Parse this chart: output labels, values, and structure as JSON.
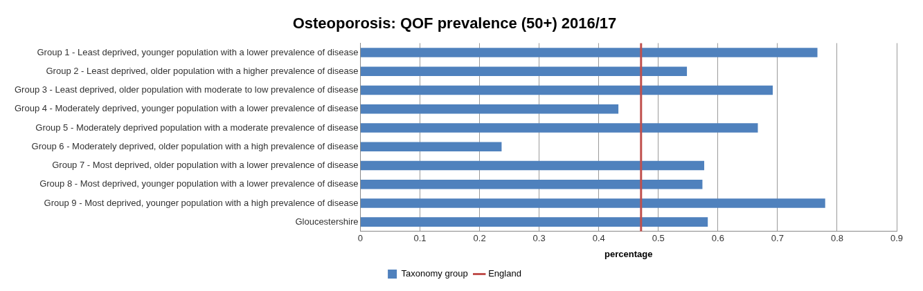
{
  "chart_data": {
    "type": "bar",
    "orientation": "horizontal",
    "title": "Osteoporosis: QOF prevalence (50+) 2016/17",
    "xlabel": "percentage",
    "categories": [
      "Group 1 - Least deprived, younger population with a lower prevalence of disease",
      "Group 2 - Least deprived, older population with a higher prevalence of disease",
      "Group 3 - Least deprived, older population with moderate to low prevalence of disease",
      "Group 4 - Moderately deprived, younger population with a lower prevalence of disease",
      "Group 5 - Moderately deprived population with a moderate prevalence of disease",
      "Group 6 - Moderately deprived, older population with a high prevalence of disease",
      "Group 7 - Most deprived, older population with a lower prevalence of disease",
      "Group 8 - Most deprived, younger population with a lower prevalence of disease",
      "Group 9 - Most deprived, younger population with a high prevalence of disease",
      "Gloucestershire"
    ],
    "series": [
      {
        "name": "Taxonomy group",
        "color": "#4f81bd",
        "values": [
          0.767,
          0.548,
          0.692,
          0.433,
          0.667,
          0.237,
          0.577,
          0.574,
          0.78,
          0.583
        ]
      }
    ],
    "xlim": [
      0,
      0.9
    ],
    "xticks": [
      0,
      0.1,
      0.2,
      0.3,
      0.4,
      0.5,
      0.6,
      0.7,
      0.8,
      0.9
    ],
    "ref_lines": [
      {
        "axis": "x",
        "value": 0.471,
        "label": "England",
        "color": "#c0504d"
      }
    ],
    "grid": "x",
    "legend": "bottom"
  }
}
